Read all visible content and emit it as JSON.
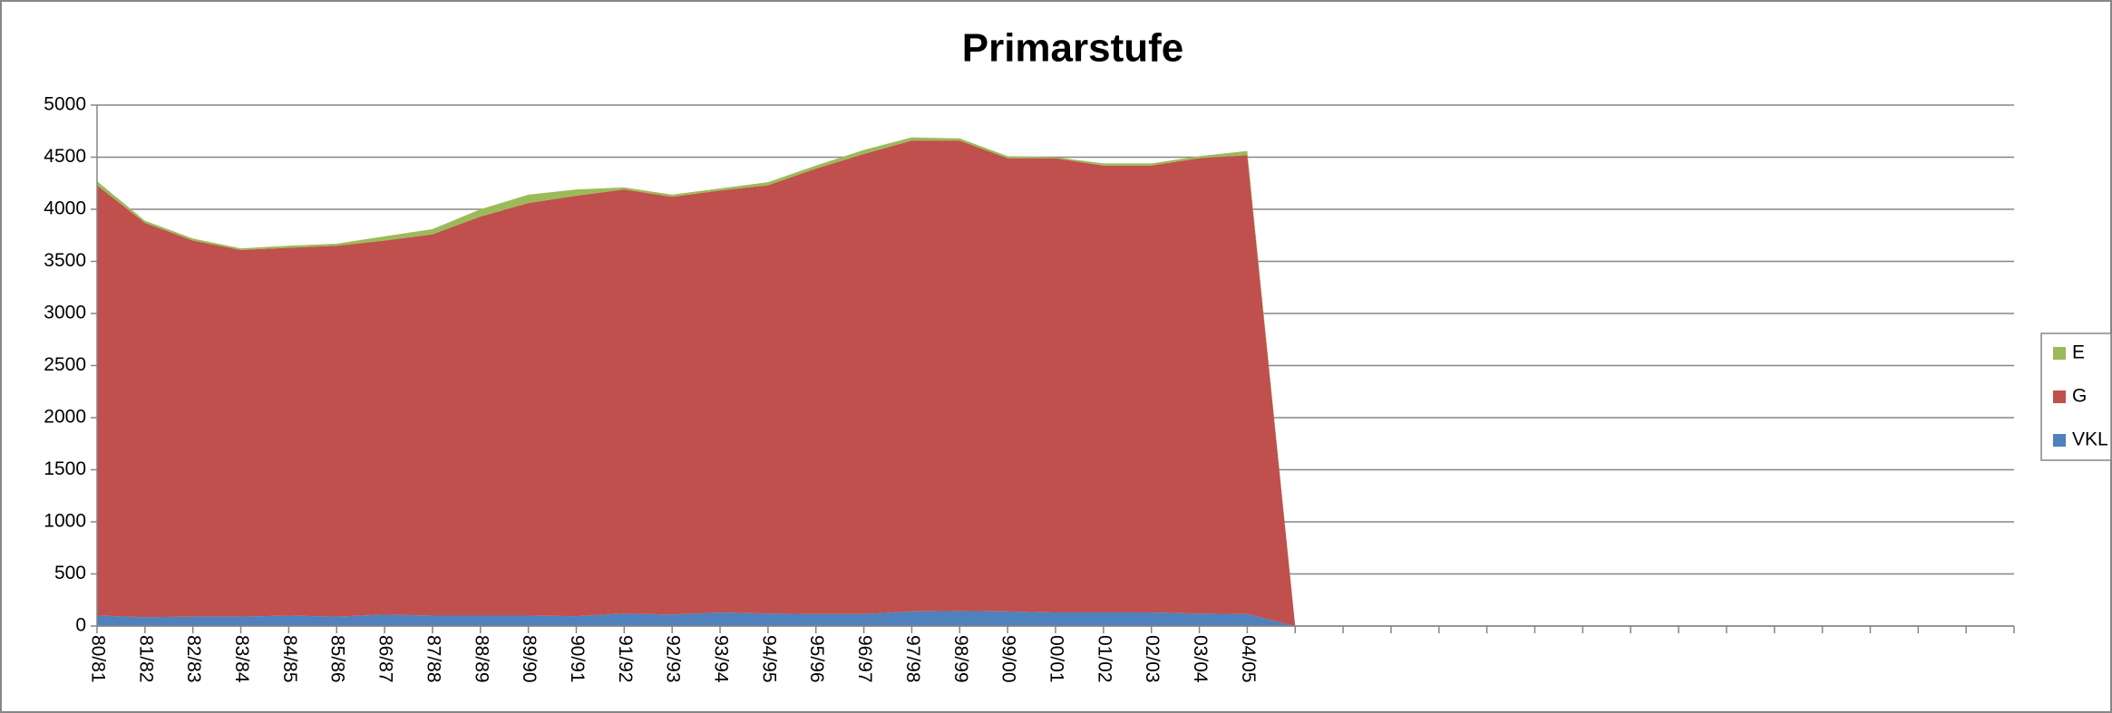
{
  "chart_data": {
    "type": "stacked_area",
    "title": "Primarstufe",
    "categories": [
      "80/81",
      "81/82",
      "82/83",
      "83/84",
      "84/85",
      "85/86",
      "86/87",
      "87/88",
      "88/89",
      "89/90",
      "90/91",
      "91/92",
      "92/93",
      "93/94",
      "94/95",
      "95/96",
      "96/97",
      "97/98",
      "98/99",
      "99/00",
      "00/01",
      "01/02",
      "02/03",
      "03/04",
      "04/05",
      null,
      null,
      null,
      null,
      null,
      null,
      null,
      null,
      null,
      null,
      null,
      null,
      null,
      null,
      null,
      null
    ],
    "series": [
      {
        "name": "VKL",
        "color": "#4f81bd",
        "values": [
          100,
          85,
          90,
          90,
          100,
          90,
          110,
          100,
          100,
          100,
          95,
          120,
          110,
          130,
          120,
          115,
          115,
          140,
          145,
          140,
          130,
          130,
          130,
          120,
          115,
          0,
          null,
          null,
          null,
          null,
          null,
          null,
          null,
          null,
          null,
          null,
          null,
          null,
          null,
          null,
          null
        ]
      },
      {
        "name": "G",
        "color": "#c0504d",
        "values": [
          4130,
          3785,
          3610,
          3520,
          3530,
          3560,
          3590,
          3660,
          3830,
          3960,
          4035,
          4070,
          4010,
          4050,
          4110,
          4275,
          4415,
          4520,
          4515,
          4350,
          4360,
          4290,
          4290,
          4370,
          4405,
          0,
          null,
          null,
          null,
          null,
          null,
          null,
          null,
          null,
          null,
          null,
          null,
          null,
          null,
          null,
          null
        ]
      },
      {
        "name": "E",
        "color": "#9bbb59",
        "values": [
          40,
          20,
          20,
          15,
          20,
          20,
          40,
          50,
          70,
          80,
          60,
          20,
          20,
          20,
          30,
          30,
          40,
          30,
          20,
          20,
          10,
          20,
          20,
          20,
          40,
          0,
          null,
          null,
          null,
          null,
          null,
          null,
          null,
          null,
          null,
          null,
          null,
          null,
          null,
          null,
          null
        ]
      }
    ],
    "ylim": [
      0,
      5000
    ],
    "yticks": [
      0,
      500,
      1000,
      1500,
      2000,
      2500,
      3000,
      3500,
      4000,
      4500,
      5000
    ],
    "grid": true,
    "legend": "right"
  }
}
